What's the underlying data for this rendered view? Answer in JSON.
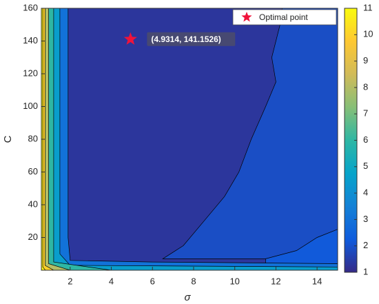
{
  "chart_data": {
    "type": "contour",
    "xlabel": "σ",
    "ylabel": "C",
    "xlim": [
      0.6,
      15
    ],
    "ylim": [
      0,
      160
    ],
    "xticks": [
      2,
      4,
      6,
      8,
      10,
      12,
      14
    ],
    "yticks": [
      20,
      40,
      60,
      80,
      100,
      120,
      140,
      160
    ],
    "clim": [
      1,
      11
    ],
    "cticks": [
      1,
      2,
      3,
      4,
      5,
      6,
      7,
      8,
      9,
      10,
      11
    ],
    "colormap": [
      "#352a87",
      "#0f5cdd",
      "#1481d6",
      "#06a4ca",
      "#2eb7a4",
      "#87bf77",
      "#d1bb59",
      "#fec832",
      "#f9fb0e"
    ],
    "regions": [
      {
        "level": 1.3,
        "x": [
          0.6,
          15,
          15,
          0.6
        ],
        "y": [
          0,
          0,
          160,
          160
        ]
      },
      {
        "level": 1.9,
        "x": [
          12.3,
          12.2,
          11.8,
          12.0,
          11.5,
          10.8,
          10.2,
          9.5,
          8.5,
          7.5,
          6.5,
          15,
          15
        ],
        "y": [
          160,
          150,
          130,
          115,
          100,
          80,
          60,
          45,
          30,
          15,
          7,
          7,
          160
        ]
      },
      {
        "level": 2.2,
        "x": [
          11.5,
          13,
          14,
          15,
          15,
          11.5
        ],
        "y": [
          7,
          12,
          20,
          25,
          4,
          4
        ]
      },
      {
        "level": 3,
        "x": [
          0.6,
          15,
          15,
          6,
          2,
          1.9,
          1.9,
          0.6
        ],
        "y": [
          0,
          0,
          4,
          5,
          6,
          20,
          160,
          160
        ]
      },
      {
        "level": 4.5,
        "x": [
          0.6,
          15,
          15,
          2,
          1.5,
          1.5,
          0.6
        ],
        "y": [
          0,
          0,
          2,
          3,
          10,
          160,
          160
        ]
      },
      {
        "level": 6,
        "x": [
          0.6,
          4,
          1.2,
          1.2,
          0.6
        ],
        "y": [
          0,
          0,
          5,
          160,
          160
        ]
      },
      {
        "level": 8,
        "x": [
          0.6,
          2,
          0.95,
          0.95,
          0.6
        ],
        "y": [
          0,
          0,
          4,
          160,
          160
        ]
      },
      {
        "level": 10,
        "x": [
          0.6,
          1.2,
          0.78,
          0.78,
          0.6
        ],
        "y": [
          0,
          0,
          3,
          160,
          160
        ]
      },
      {
        "level": 10.8,
        "x": [
          0.6,
          0.8,
          0.67,
          0.67,
          0.6
        ],
        "y": [
          0,
          0,
          2,
          160,
          160
        ]
      }
    ],
    "point": {
      "name": "Optimal point",
      "x": 4.9314,
      "y": 141.1526,
      "label": "(4.9314, 141.1526)",
      "color": "#f0133a"
    },
    "legend_loc": "upper right"
  }
}
